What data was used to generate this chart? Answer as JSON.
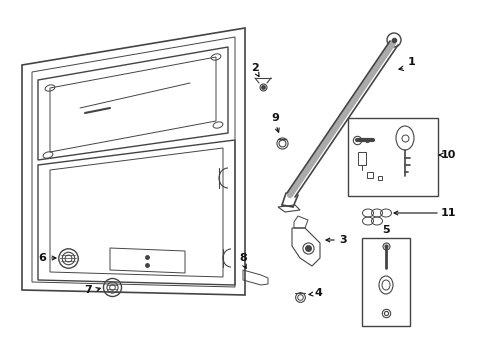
{
  "background_color": "#ffffff",
  "gray": "#444444",
  "dark": "#111111",
  "lw_main": 1.0,
  "lw_thin": 0.6,
  "lw_thick": 2.0
}
